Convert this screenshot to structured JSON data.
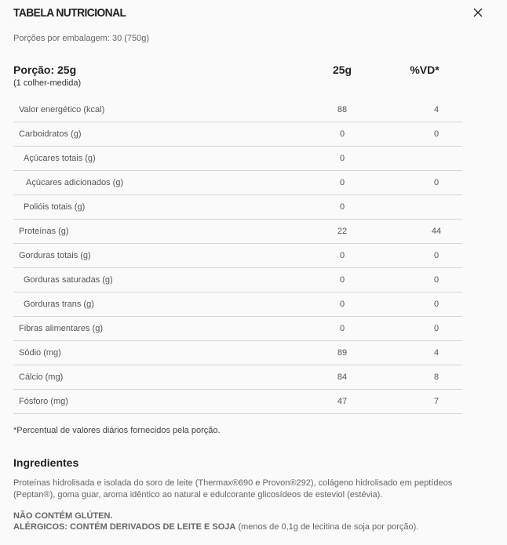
{
  "header": {
    "title": "TABELA NUTRICIONAL",
    "close_icon": "close-icon"
  },
  "servings": "Porções por embalagem: 30 (750g)",
  "portion": {
    "label": "Porção: 25g",
    "sub": "(1 colher-medida)",
    "col_amount": "25g",
    "col_vd": "%VD*"
  },
  "rows": [
    {
      "label": "Valor energético (kcal)",
      "value": "88",
      "vd": "4",
      "indent": 0
    },
    {
      "label": "Carboidratos (g)",
      "value": "0",
      "vd": "0",
      "indent": 0
    },
    {
      "label": "Açúcares totais (g)",
      "value": "0",
      "vd": "",
      "indent": 1
    },
    {
      "label": "Açúcares adicionados (g)",
      "value": "0",
      "vd": "0",
      "indent": 2
    },
    {
      "label": "Polióis totais (g)",
      "value": "0",
      "vd": "",
      "indent": 1
    },
    {
      "label": "Proteínas (g)",
      "value": "22",
      "vd": "44",
      "indent": 0
    },
    {
      "label": "Gorduras totais (g)",
      "value": "0",
      "vd": "0",
      "indent": 0
    },
    {
      "label": "Gorduras saturadas (g)",
      "value": "0",
      "vd": "0",
      "indent": 1
    },
    {
      "label": "Gorduras trans (g)",
      "value": "0",
      "vd": "0",
      "indent": 1
    },
    {
      "label": "Fibras alimentares (g)",
      "value": "0",
      "vd": "0",
      "indent": 0
    },
    {
      "label": "Sódio (mg)",
      "value": "89",
      "vd": "4",
      "indent": 0
    },
    {
      "label": "Cálcio (mg)",
      "value": "84",
      "vd": "8",
      "indent": 0
    },
    {
      "label": "Fósforo (mg)",
      "value": "47",
      "vd": "7",
      "indent": 0
    }
  ],
  "footnote": "*Percentual de valores diários fornecidos pela porção.",
  "ingredients": {
    "title": "Ingredientes",
    "text": "Proteínas hidrolisada e isolada do soro de leite (Thermax®690 e Provon®292), colágeno hidrolisado em peptídeos (Peptan®), goma guar, aroma idêntico ao natural e edulcorante glicosídeos de esteviol (estévia).",
    "gluten": "NÃO CONTÉM GLÚTEN.",
    "allergens_bold": "ALÉRGICOS: CONTÉM DERIVADOS DE LEITE E SOJA",
    "allergens_rest": " (menos de 0,1g de lecitina de soja por porção)."
  }
}
